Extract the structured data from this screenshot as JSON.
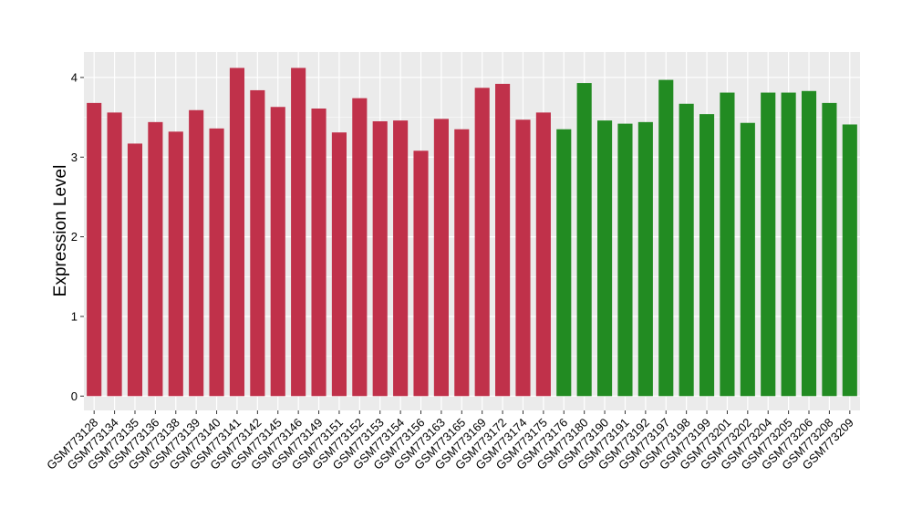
{
  "chart_data": {
    "type": "bar",
    "xlabel": "",
    "ylabel": "Expression Level",
    "ylim": [
      -0.18,
      4.32
    ],
    "yticks": [
      0,
      1,
      2,
      3,
      4
    ],
    "grid": true,
    "legend": "none",
    "colors": {
      "panel": "#ebebeb",
      "grid": "#ffffff",
      "group1": "#c0314a",
      "group2": "#228b22"
    },
    "categories": [
      "GSM773128",
      "GSM773134",
      "GSM773135",
      "GSM773136",
      "GSM773138",
      "GSM773139",
      "GSM773140",
      "GSM773141",
      "GSM773142",
      "GSM773145",
      "GSM773146",
      "GSM773149",
      "GSM773151",
      "GSM773152",
      "GSM773153",
      "GSM773154",
      "GSM773156",
      "GSM773163",
      "GSM773165",
      "GSM773169",
      "GSM773172",
      "GSM773174",
      "GSM773175",
      "GSM773176",
      "GSM773180",
      "GSM773190",
      "GSM773191",
      "GSM773192",
      "GSM773197",
      "GSM773198",
      "GSM773199",
      "GSM773201",
      "GSM773202",
      "GSM773204",
      "GSM773205",
      "GSM773206",
      "GSM773208",
      "GSM773209"
    ],
    "values": [
      3.68,
      3.56,
      3.17,
      3.44,
      3.32,
      3.59,
      3.36,
      4.12,
      3.84,
      3.63,
      4.12,
      3.61,
      3.31,
      3.74,
      3.45,
      3.46,
      3.08,
      3.48,
      3.35,
      3.87,
      3.92,
      3.47,
      3.56,
      3.35,
      3.93,
      3.46,
      3.42,
      3.44,
      3.97,
      3.67,
      3.54,
      3.81,
      3.43,
      3.81,
      3.81,
      3.83,
      3.68,
      3.41
    ],
    "groups": [
      1,
      1,
      1,
      1,
      1,
      1,
      1,
      1,
      1,
      1,
      1,
      1,
      1,
      1,
      1,
      1,
      1,
      1,
      1,
      1,
      1,
      1,
      1,
      2,
      2,
      2,
      2,
      2,
      2,
      2,
      2,
      2,
      2,
      2,
      2,
      2,
      2,
      2
    ]
  }
}
